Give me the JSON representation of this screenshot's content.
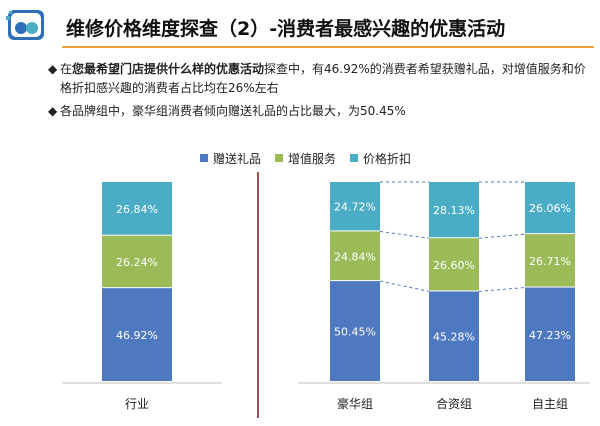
{
  "header": {
    "title": "维修价格维度探查（2）-消费者最感兴趣的优惠活动"
  },
  "bullets": [
    {
      "pre": "在",
      "bold": "您最希望门店提供什么样的优惠活动",
      "post": "探查中，有46.92%的消费者希望获赠礼品，对增值服务和价格折扣感兴趣的消费者占比均在26%左右"
    },
    {
      "pre": "各品牌组中，豪华组消费者倾向赠送礼品的占比最大，为50.45%",
      "bold": "",
      "post": ""
    }
  ],
  "colors": {
    "gift": "#4e79c0",
    "service": "#9bbb59",
    "discount": "#4bacc6",
    "divider": "#8b1a1a",
    "title_rule": "#e8a33a"
  },
  "chart_data": [
    {
      "type": "bar",
      "stacked": true,
      "categories": [
        "行业"
      ],
      "series": [
        {
          "name": "赠送礼品",
          "values": [
            46.92
          ]
        },
        {
          "name": "增值服务",
          "values": [
            26.24
          ]
        },
        {
          "name": "价格折扣",
          "values": [
            26.84
          ]
        }
      ],
      "value_labels": {
        "赠送礼品": [
          "46.92%"
        ],
        "增值服务": [
          "26.24%"
        ],
        "价格折扣": [
          "26.84%"
        ]
      },
      "ylim": [
        0,
        100
      ],
      "legend": "top"
    },
    {
      "type": "bar",
      "stacked": true,
      "categories": [
        "豪华组",
        "合资组",
        "自主组"
      ],
      "series": [
        {
          "name": "赠送礼品",
          "values": [
            50.45,
            45.28,
            47.23
          ]
        },
        {
          "name": "增值服务",
          "values": [
            24.84,
            26.6,
            26.71
          ]
        },
        {
          "name": "价格折扣",
          "values": [
            24.72,
            28.13,
            26.06
          ]
        }
      ],
      "value_labels": {
        "赠送礼品": [
          "50.45%",
          "45.28%",
          "47.23%"
        ],
        "增值服务": [
          "24.84%",
          "26.60%",
          "26.71%"
        ],
        "价格折扣": [
          "24.72%",
          "28.13%",
          "26.06%"
        ]
      },
      "ylim": [
        0,
        100
      ],
      "series_lines": true
    }
  ]
}
